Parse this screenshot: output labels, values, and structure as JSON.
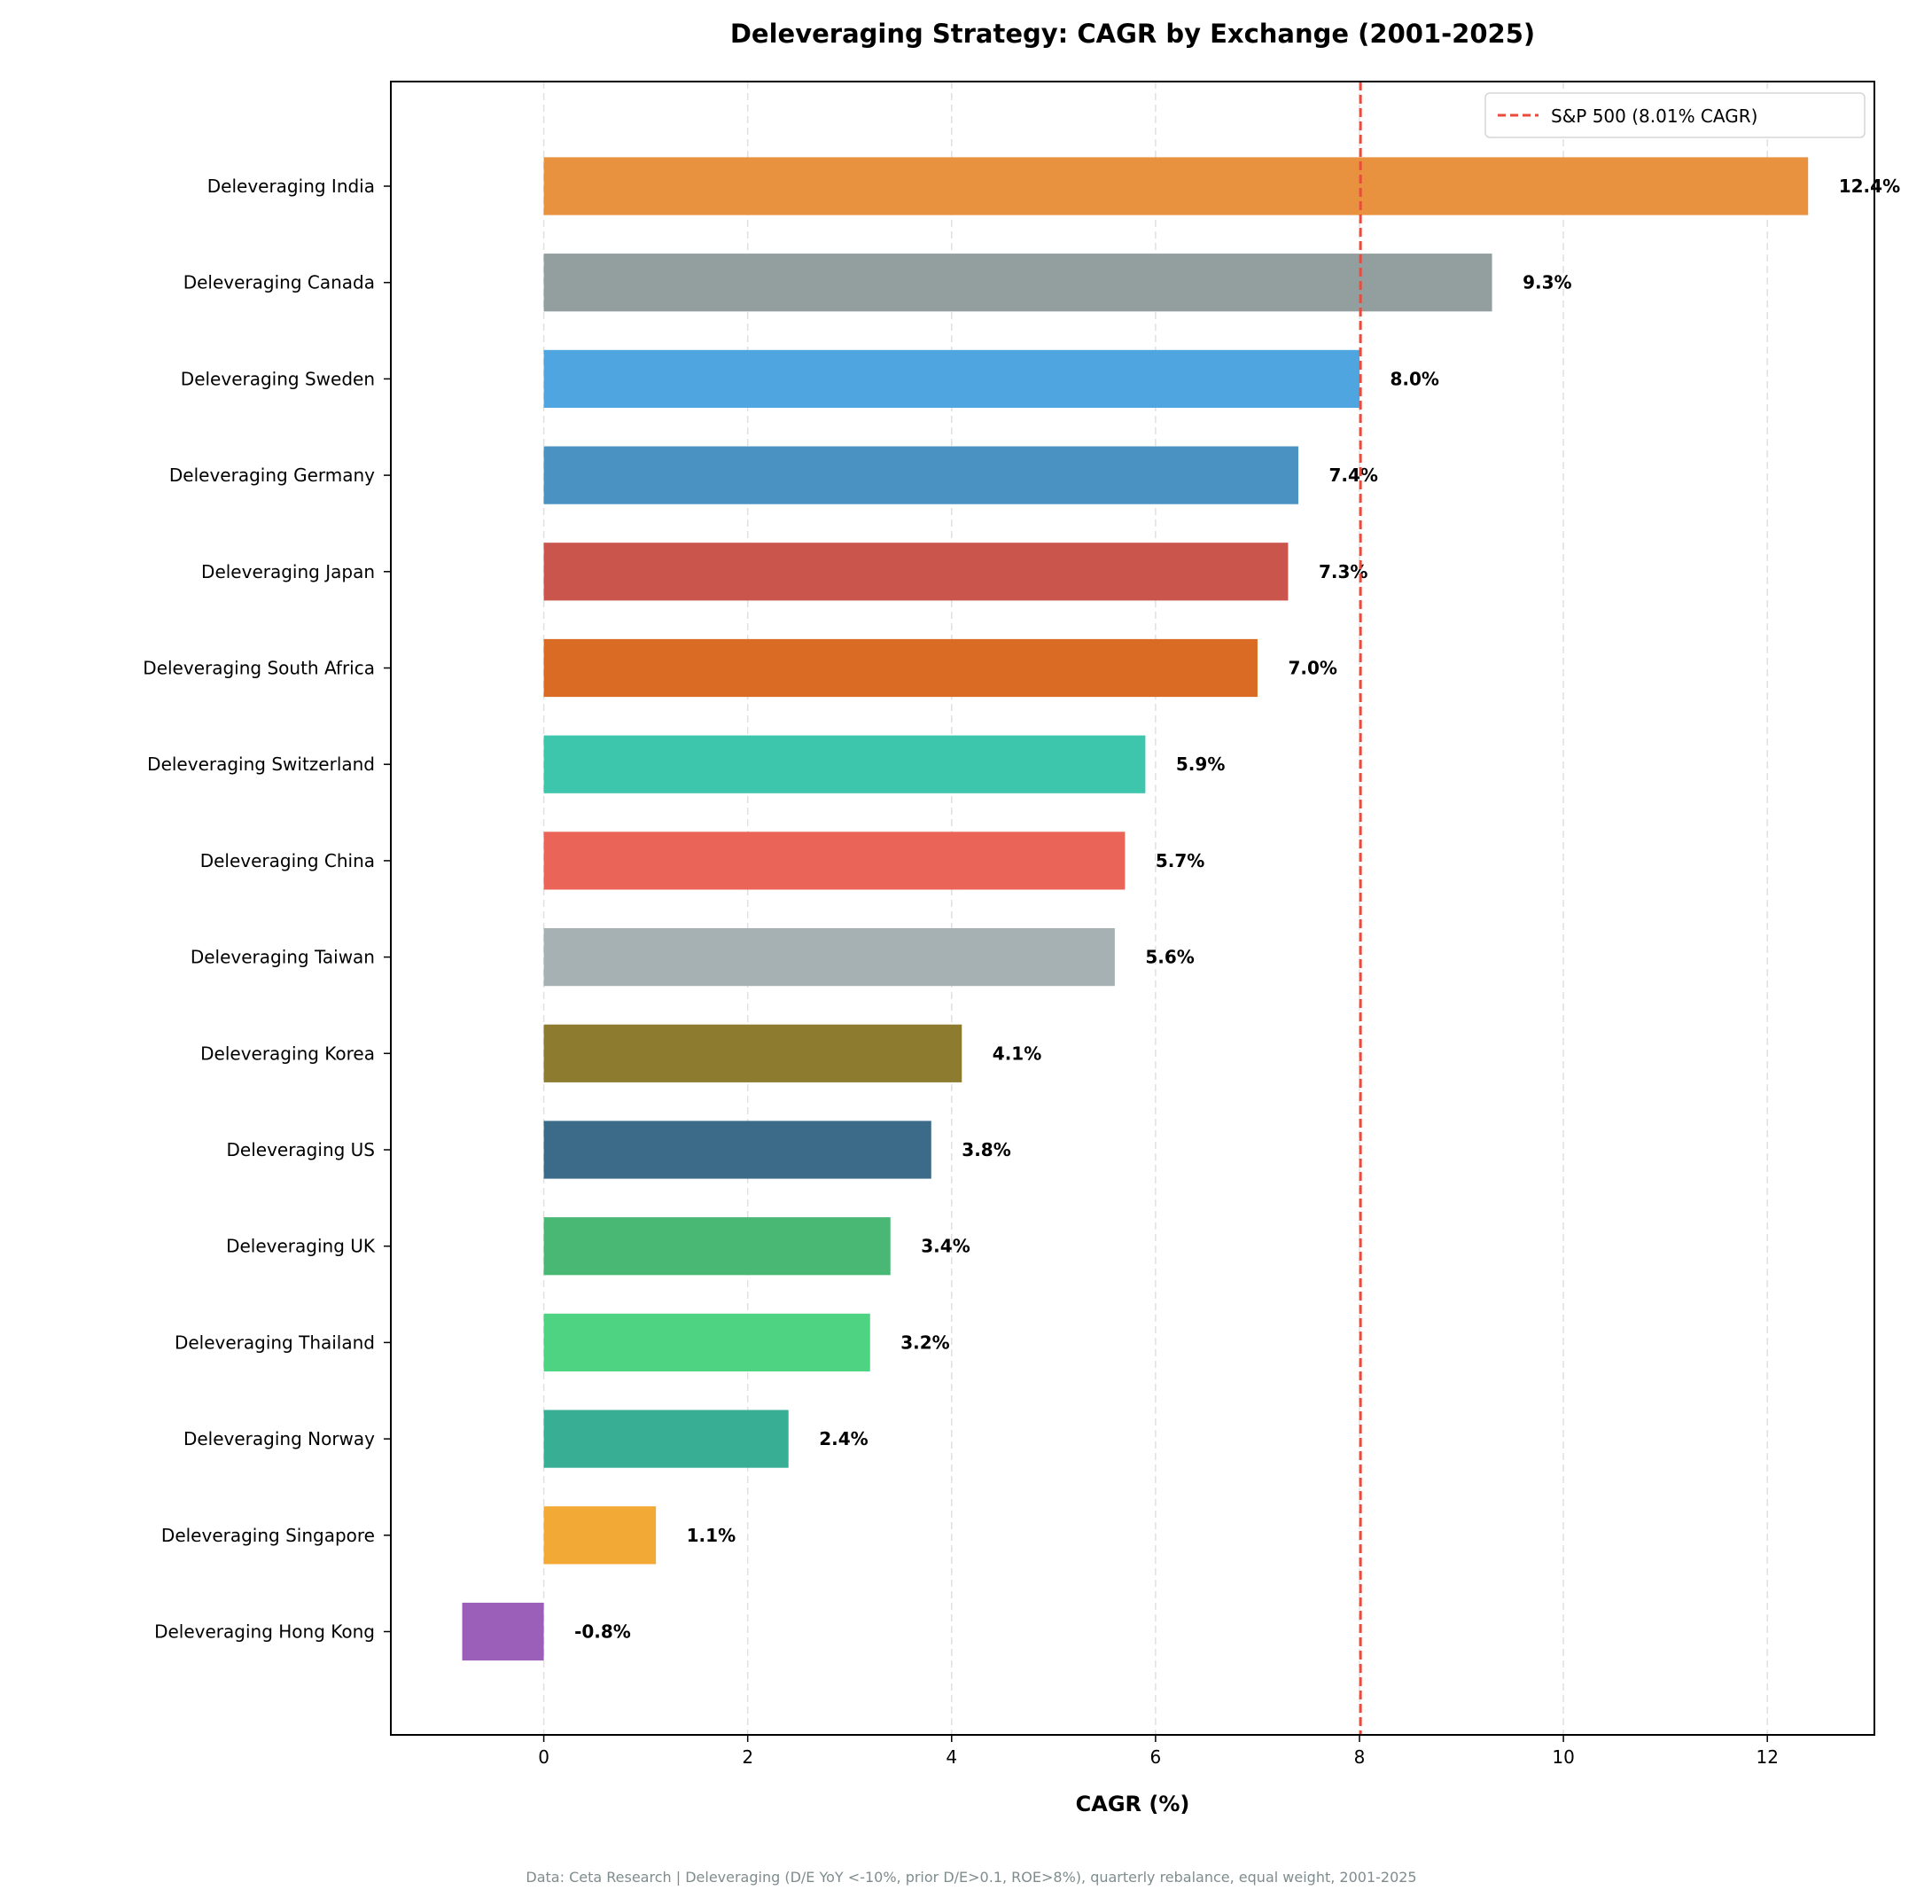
{
  "chart_data": {
    "type": "bar",
    "orientation": "horizontal",
    "title": "Deleveraging Strategy: CAGR by Exchange (2001-2025)",
    "xlabel": "CAGR (%)",
    "ylabel": "",
    "xlim": [
      -1.5,
      13.05
    ],
    "xticks": [
      0,
      2,
      4,
      6,
      8,
      10,
      12
    ],
    "grid": "x, dashed",
    "categories": [
      "Deleveraging India",
      "Deleveraging Canada",
      "Deleveraging Sweden",
      "Deleveraging Germany",
      "Deleveraging Japan",
      "Deleveraging South Africa",
      "Deleveraging Switzerland",
      "Deleveraging China",
      "Deleveraging Taiwan",
      "Deleveraging Korea",
      "Deleveraging US",
      "Deleveraging UK",
      "Deleveraging Thailand",
      "Deleveraging Norway",
      "Deleveraging Singapore",
      "Deleveraging Hong Kong"
    ],
    "values": [
      12.4,
      9.3,
      8.0,
      7.4,
      7.3,
      7.0,
      5.9,
      5.7,
      5.6,
      4.1,
      3.8,
      3.4,
      3.2,
      2.4,
      1.1,
      -0.8
    ],
    "labels": [
      "12.4%",
      "9.3%",
      "8.0%",
      "7.4%",
      "7.3%",
      "7.0%",
      "5.9%",
      "5.7%",
      "5.6%",
      "4.1%",
      "3.8%",
      "3.4%",
      "3.2%",
      "2.4%",
      "1.1%",
      "-0.8%"
    ],
    "colors": [
      "#e8913f",
      "#939e9e",
      "#4fa5df",
      "#4a92c2",
      "#c9554c",
      "#d96b24",
      "#3dc6ac",
      "#ea6457",
      "#a5b1b2",
      "#8d7b2f",
      "#3c6b8a",
      "#48b874",
      "#4dd381",
      "#38ae95",
      "#f3a935",
      "#9b5fb9"
    ],
    "reference_line": {
      "value": 8.01,
      "label": "S&P 500 (8.01% CAGR)",
      "color": "#e74c3c",
      "style": "dashed"
    },
    "legend": {
      "placement": "top-right",
      "entries": [
        "S&P 500 (8.01% CAGR)"
      ]
    },
    "footnote": "Data: Ceta Research | Deleveraging (D/E YoY <-10%, prior D/E>0.1, ROE>8%), quarterly rebalance, equal weight, 2001-2025"
  }
}
